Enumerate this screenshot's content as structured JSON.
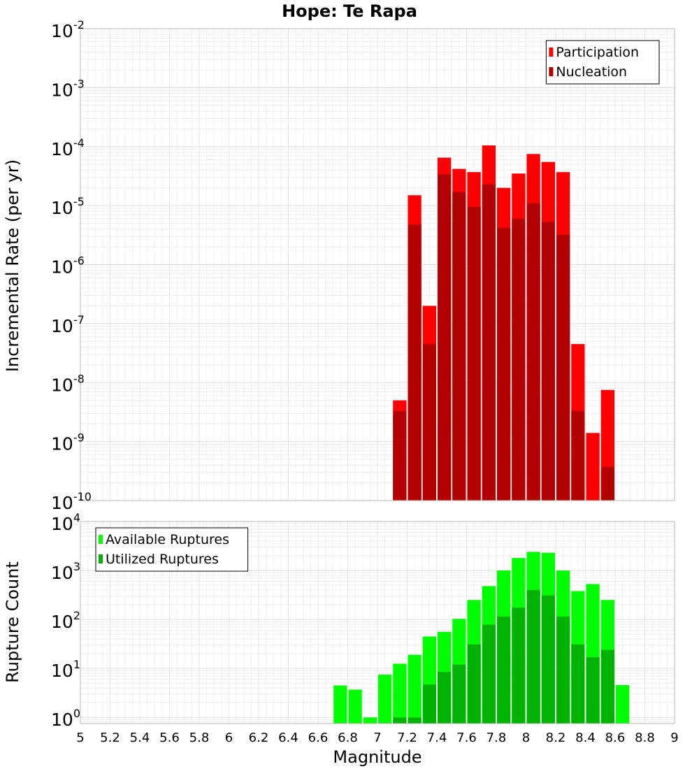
{
  "chart_data": [
    {
      "type": "bar",
      "title": "Hope: Te Rapa",
      "xlabel": "",
      "ylabel": "Incremental Rate (per yr)",
      "yscale": "log",
      "ylim": [
        1e-10,
        0.01
      ],
      "xlim": [
        5,
        9
      ],
      "grid": true,
      "legend_position": "top-right",
      "y_ticks": [
        {
          "base": "10",
          "exp": "-10",
          "value": 1e-10
        },
        {
          "base": "10",
          "exp": "-9",
          "value": 1e-09
        },
        {
          "base": "10",
          "exp": "-8",
          "value": 1e-08
        },
        {
          "base": "10",
          "exp": "-7",
          "value": 1e-07
        },
        {
          "base": "10",
          "exp": "-6",
          "value": 1e-06
        },
        {
          "base": "10",
          "exp": "-5",
          "value": 1e-05
        },
        {
          "base": "10",
          "exp": "-4",
          "value": 0.0001
        },
        {
          "base": "10",
          "exp": "-3",
          "value": 0.001
        },
        {
          "base": "10",
          "exp": "-2",
          "value": 0.01
        }
      ],
      "series": [
        {
          "name": "Participation",
          "color": "#ff0000",
          "points": [
            [
              7.15,
              5e-09
            ],
            [
              7.25,
              1.5e-05
            ],
            [
              7.35,
              2e-07
            ],
            [
              7.45,
              6.5e-05
            ],
            [
              7.55,
              4.2e-05
            ],
            [
              7.65,
              3.7e-05
            ],
            [
              7.75,
              0.000105
            ],
            [
              7.85,
              2e-05
            ],
            [
              7.95,
              3.5e-05
            ],
            [
              8.05,
              7.5e-05
            ],
            [
              8.15,
              5.5e-05
            ],
            [
              8.25,
              3.7e-05
            ],
            [
              8.35,
              4.5e-08
            ],
            [
              8.45,
              1.4e-09
            ],
            [
              8.55,
              7.5e-09
            ]
          ]
        },
        {
          "name": "Nucleation",
          "color": "#b30000",
          "points": [
            [
              7.15,
              3.3e-09
            ],
            [
              7.25,
              4.8e-06
            ],
            [
              7.35,
              4.5e-08
            ],
            [
              7.45,
              3.4e-05
            ],
            [
              7.55,
              1.7e-05
            ],
            [
              7.65,
              9.5e-06
            ],
            [
              7.75,
              2.3e-05
            ],
            [
              7.85,
              4.2e-06
            ],
            [
              7.95,
              6e-06
            ],
            [
              8.05,
              1.1e-05
            ],
            [
              8.15,
              5.3e-06
            ],
            [
              8.25,
              3.2e-06
            ],
            [
              8.35,
              3.3e-09
            ],
            [
              8.55,
              3.7e-10
            ]
          ]
        }
      ]
    },
    {
      "type": "bar",
      "title": "",
      "xlabel": "Magnitude",
      "ylabel": "Rupture Count",
      "yscale": "log",
      "ylim": [
        0.75,
        10000
      ],
      "xlim": [
        5,
        9
      ],
      "grid": true,
      "legend_position": "top-left",
      "x_ticks": [
        "5",
        "5.2",
        "5.4",
        "5.6",
        "5.8",
        "6",
        "6.2",
        "6.4",
        "6.6",
        "6.8",
        "7",
        "7.2",
        "7.4",
        "7.6",
        "7.8",
        "8",
        "8.2",
        "8.4",
        "8.6",
        "8.8",
        "9"
      ],
      "y_ticks": [
        {
          "base": "10",
          "exp": "0",
          "value": 1
        },
        {
          "base": "10",
          "exp": "1",
          "value": 10
        },
        {
          "base": "10",
          "exp": "2",
          "value": 100
        },
        {
          "base": "10",
          "exp": "3",
          "value": 1000
        },
        {
          "base": "10",
          "exp": "4",
          "value": 10000
        }
      ],
      "series": [
        {
          "name": "Available Ruptures",
          "color": "#00ff00",
          "points": [
            [
              6.75,
              4.5
            ],
            [
              6.85,
              3.7
            ],
            [
              6.95,
              1
            ],
            [
              7.05,
              7.5
            ],
            [
              7.15,
              12.5
            ],
            [
              7.25,
              19
            ],
            [
              7.35,
              45
            ],
            [
              7.45,
              56
            ],
            [
              7.55,
              103
            ],
            [
              7.65,
              250
            ],
            [
              7.75,
              480
            ],
            [
              7.85,
              1000
            ],
            [
              7.95,
              1800
            ],
            [
              8.05,
              2400
            ],
            [
              8.15,
              2300
            ],
            [
              8.25,
              1000
            ],
            [
              8.35,
              380
            ],
            [
              8.45,
              530
            ],
            [
              8.55,
              250
            ],
            [
              8.65,
              4.6
            ]
          ]
        },
        {
          "name": "Utilized Ruptures",
          "color": "#00b300",
          "points": [
            [
              7.15,
              1
            ],
            [
              7.25,
              1
            ],
            [
              7.35,
              4.7
            ],
            [
              7.45,
              8.5
            ],
            [
              7.55,
              12
            ],
            [
              7.65,
              31
            ],
            [
              7.75,
              78
            ],
            [
              7.85,
              115
            ],
            [
              7.95,
              175
            ],
            [
              8.05,
              400
            ],
            [
              8.15,
              310
            ],
            [
              8.25,
              115
            ],
            [
              8.35,
              31
            ],
            [
              8.45,
              17
            ],
            [
              8.55,
              24
            ]
          ]
        }
      ]
    }
  ]
}
